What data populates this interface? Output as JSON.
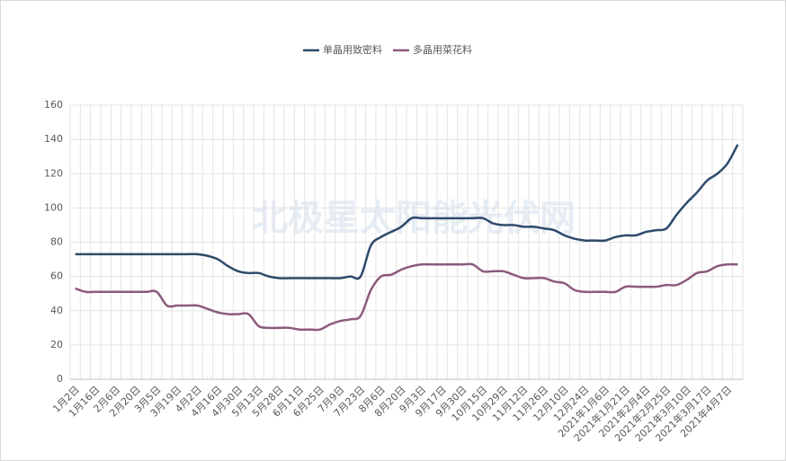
{
  "chart_data": {
    "type": "line",
    "watermark": "北极星太阳能光伏网",
    "categories": [
      "1月2日",
      null,
      "1月16日",
      null,
      "2月6日",
      null,
      "2月20日",
      null,
      "3月5日",
      null,
      "3月19日",
      null,
      "4月2日",
      null,
      "4月16日",
      null,
      "4月30日",
      null,
      "5月13日",
      null,
      "5月28日",
      null,
      "6月11日",
      null,
      "6月25日",
      null,
      "7月9日",
      null,
      "7月23日",
      null,
      "8月6日",
      null,
      "8月20日",
      null,
      "9月3日",
      null,
      "9月17日",
      null,
      "9月30日",
      null,
      "10月15日",
      null,
      "10月29日",
      null,
      "11月12日",
      null,
      "11月26日",
      null,
      "12月10日",
      null,
      "12月24日",
      null,
      "2021年1月6日",
      null,
      "2021年1月21日",
      null,
      "2021年2月4日",
      null,
      "2021年2月25日",
      null,
      "2021年3月10日",
      null,
      "2021年3月17日",
      null,
      "2021年4月7日",
      null
    ],
    "series": [
      {
        "name": "单晶用致密料",
        "color": "#2e4a6b",
        "values": [
          73,
          73,
          73,
          73,
          73,
          73,
          73,
          73,
          73,
          73,
          73,
          73,
          73,
          72,
          70,
          66,
          63,
          62,
          62,
          60,
          59,
          59,
          59,
          59,
          59,
          59,
          59,
          60,
          60,
          78,
          83,
          86,
          89,
          94,
          94,
          94,
          94,
          94,
          94,
          94,
          94,
          91,
          90,
          90,
          89,
          89,
          88,
          87,
          84,
          82,
          81,
          81,
          81,
          83,
          84,
          84,
          86,
          87,
          88,
          96,
          103,
          109,
          116,
          120,
          126,
          137
        ]
      },
      {
        "name": "多晶用菜花料",
        "color": "#8c5a7c",
        "values": [
          53,
          51,
          51,
          51,
          51,
          51,
          51,
          51,
          51,
          43,
          43,
          43,
          43,
          41,
          39,
          38,
          38,
          38,
          31,
          30,
          30,
          30,
          29,
          29,
          29,
          32,
          34,
          35,
          37,
          52,
          60,
          61,
          64,
          66,
          67,
          67,
          67,
          67,
          67,
          67,
          63,
          63,
          63,
          61,
          59,
          59,
          59,
          57,
          56,
          52,
          51,
          51,
          51,
          51,
          54,
          54,
          54,
          54,
          55,
          55,
          58,
          62,
          63,
          66,
          67,
          67
        ]
      }
    ],
    "ylim": [
      0,
      160
    ],
    "yticks": [
      0,
      20,
      40,
      60,
      80,
      100,
      120,
      140,
      160
    ],
    "grid": true
  }
}
